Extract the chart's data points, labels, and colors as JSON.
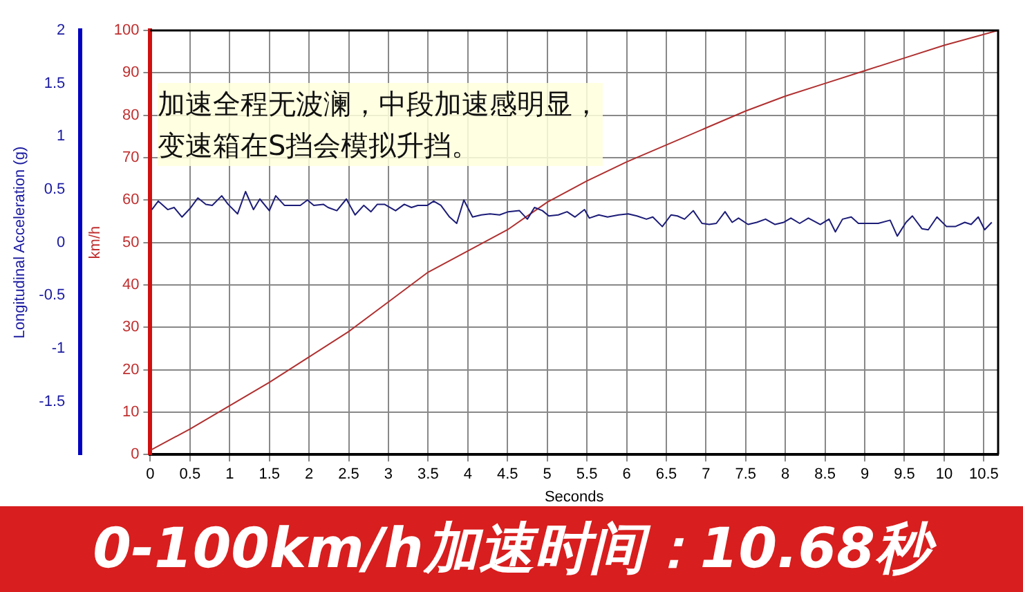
{
  "chart_data": {
    "type": "line",
    "xlabel": "Seconds",
    "ylabel": "Longitudinal Acceleration (g)",
    "y2label": "km/h",
    "xlim": [
      0,
      10.68
    ],
    "xticks": [
      0,
      0.5,
      1,
      1.5,
      2,
      2.5,
      3,
      3.5,
      4,
      4.5,
      5,
      5.5,
      6,
      6.5,
      7,
      7.5,
      8,
      8.5,
      9,
      9.5,
      10,
      10.5
    ],
    "ylim": [
      -2,
      2
    ],
    "yticks": [
      2,
      1.5,
      1,
      0.5,
      0,
      -0.5,
      -1,
      -1.5
    ],
    "y2lim": [
      0,
      100
    ],
    "y2ticks": [
      0,
      10,
      20,
      30,
      40,
      50,
      60,
      70,
      80,
      90,
      100
    ],
    "grid": true,
    "legend": false,
    "marker": "none",
    "line_style": "solid",
    "annotations": [
      "加速全程无波澜，中段加速感明显，变速箱在S挡会模拟升挡。",
      "0-100km/h加速时间：10.68秒"
    ],
    "series": [
      {
        "color": "#1c1c78",
        "x": [
          0.02,
          0.1,
          0.22,
          0.3,
          0.4,
          0.5,
          0.6,
          0.7,
          0.78,
          0.9,
          0.98,
          1.1,
          1.2,
          1.3,
          1.38,
          1.5,
          1.58,
          1.69,
          1.81,
          1.89,
          1.98,
          2.06,
          2.18,
          2.24,
          2.35,
          2.47,
          2.58,
          2.69,
          2.78,
          2.86,
          2.95,
          3.09,
          3.2,
          3.29,
          3.37,
          3.49,
          3.57,
          3.66,
          3.77,
          3.86,
          3.95,
          4.06,
          4.17,
          4.28,
          4.4,
          4.51,
          4.65,
          4.75,
          4.84,
          4.94,
          5.02,
          5.14,
          5.25,
          5.35,
          5.47,
          5.53,
          5.65,
          5.76,
          5.9,
          6.02,
          6.13,
          6.25,
          6.33,
          6.45,
          6.56,
          6.64,
          6.73,
          6.84,
          6.95,
          7.04,
          7.13,
          7.24,
          7.33,
          7.41,
          7.53,
          7.64,
          7.75,
          7.87,
          7.98,
          8.07,
          8.18,
          8.29,
          8.44,
          8.55,
          8.63,
          8.72,
          8.83,
          8.92,
          9.06,
          9.17,
          9.32,
          9.41,
          9.52,
          9.6,
          9.72,
          9.8,
          9.91,
          10.03,
          10.14,
          10.26,
          10.34,
          10.43,
          10.51,
          10.6
        ],
        "values": [
          0.31,
          0.39,
          0.31,
          0.33,
          0.24,
          0.32,
          0.42,
          0.36,
          0.35,
          0.44,
          0.36,
          0.27,
          0.48,
          0.31,
          0.41,
          0.3,
          0.44,
          0.35,
          0.35,
          0.35,
          0.4,
          0.35,
          0.36,
          0.33,
          0.3,
          0.41,
          0.26,
          0.35,
          0.29,
          0.36,
          0.36,
          0.3,
          0.36,
          0.33,
          0.35,
          0.35,
          0.39,
          0.35,
          0.24,
          0.18,
          0.4,
          0.24,
          0.26,
          0.27,
          0.26,
          0.29,
          0.3,
          0.22,
          0.33,
          0.3,
          0.25,
          0.26,
          0.29,
          0.24,
          0.31,
          0.23,
          0.26,
          0.24,
          0.26,
          0.27,
          0.25,
          0.22,
          0.24,
          0.15,
          0.26,
          0.25,
          0.22,
          0.3,
          0.18,
          0.17,
          0.18,
          0.29,
          0.19,
          0.23,
          0.17,
          0.19,
          0.22,
          0.17,
          0.19,
          0.23,
          0.18,
          0.23,
          0.17,
          0.22,
          0.1,
          0.22,
          0.24,
          0.18,
          0.18,
          0.18,
          0.21,
          0.06,
          0.19,
          0.25,
          0.13,
          0.12,
          0.24,
          0.15,
          0.15,
          0.19,
          0.17,
          0.24,
          0.12,
          0.19
        ]
      },
      {
        "color": "#b03030",
        "axis": "y2",
        "x": [
          0,
          0.5,
          1,
          1.5,
          2,
          2.5,
          3,
          3.5,
          4,
          4.5,
          5,
          5.5,
          6,
          6.5,
          7,
          7.5,
          8,
          8.5,
          9,
          9.5,
          10,
          10.68
        ],
        "values": [
          1,
          6,
          11.5,
          17,
          23,
          29,
          36,
          43,
          48,
          53,
          59.5,
          64.5,
          69,
          73,
          77,
          81,
          84.5,
          87.5,
          90.5,
          93.5,
          96.5,
          100
        ]
      }
    ]
  }
}
